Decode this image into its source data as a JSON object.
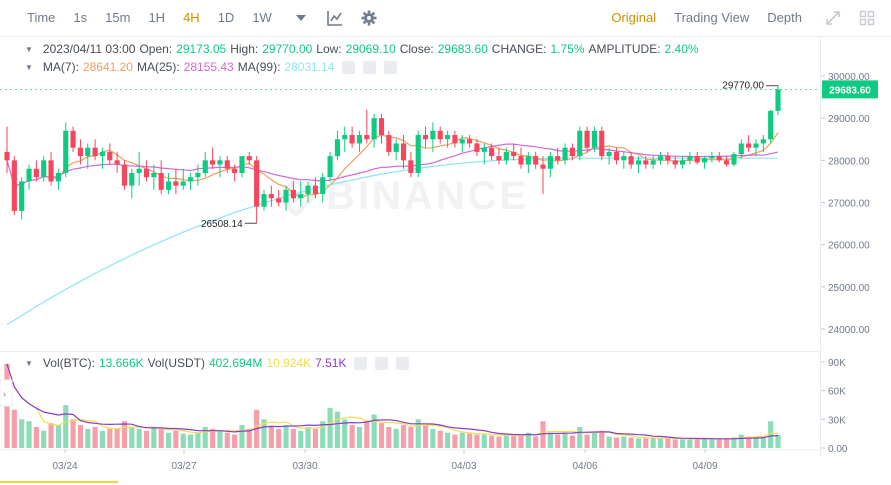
{
  "toolbar": {
    "intervals": [
      {
        "label": "Time",
        "active": false
      },
      {
        "label": "1s",
        "active": false
      },
      {
        "label": "15m",
        "active": false
      },
      {
        "label": "1H",
        "active": false
      },
      {
        "label": "4H",
        "active": true
      },
      {
        "label": "1D",
        "active": false
      },
      {
        "label": "1W",
        "active": false
      }
    ],
    "views": [
      {
        "label": "Original",
        "active": true
      },
      {
        "label": "Trading View",
        "active": false
      },
      {
        "label": "Depth",
        "active": false
      }
    ]
  },
  "ohlc": {
    "datetime": "2023/04/11 03:00",
    "open_label": "Open:",
    "open": "29173.05",
    "high_label": "High:",
    "high": "29770.00",
    "low_label": "Low:",
    "low": "29069.10",
    "close_label": "Close:",
    "close": "29683.60",
    "change_label": "CHANGE:",
    "change": "1.75%",
    "amplitude_label": "AMPLITUDE:",
    "amplitude": "2.40%"
  },
  "ma": {
    "ma7_label": "MA(7):",
    "ma7": "28641.20",
    "ma25_label": "MA(25):",
    "ma25": "28155.43",
    "ma99_label": "MA(99):",
    "ma99": "28031.14"
  },
  "volume": {
    "btc_label": "Vol(BTC):",
    "btc": "13.666K",
    "usdt_label": "Vol(USDT)",
    "usdt": "402.694M",
    "ma1": "10.924K",
    "ma2": "7.51K"
  },
  "price_axis": [
    "30000.00",
    "29000.00",
    "28000.00",
    "27000.00",
    "26000.00",
    "25000.00",
    "24000.00"
  ],
  "volume_axis": [
    "90K",
    "60K",
    "30K",
    "0.00"
  ],
  "date_axis": [
    "03/24",
    "03/27",
    "03/30",
    "04/03",
    "04/06",
    "04/09"
  ],
  "current_price": "29683.60",
  "high_marker": "29770.00",
  "low_marker": "26508.14",
  "watermark": "BINANCE",
  "colors": {
    "up": "#0ecb81",
    "down": "#f6465d",
    "accent": "#c99400",
    "ma7": "#f0a05a",
    "ma25": "#d16bd9",
    "ma99": "#8ee6ee"
  },
  "chart_data": {
    "type": "candlestick",
    "ylim": [
      23700,
      30400
    ],
    "candles": [
      [
        28200,
        28800,
        27700,
        28000
      ],
      [
        28000,
        28100,
        26700,
        26800
      ],
      [
        26800,
        27600,
        26600,
        27500
      ],
      [
        27500,
        27900,
        27300,
        27800
      ],
      [
        27800,
        28000,
        27500,
        27600
      ],
      [
        27600,
        28100,
        27500,
        28000
      ],
      [
        28000,
        28200,
        27400,
        27500
      ],
      [
        27500,
        27800,
        27300,
        27700
      ],
      [
        27700,
        28900,
        27600,
        28700
      ],
      [
        28700,
        28800,
        28200,
        28300
      ],
      [
        28300,
        28500,
        27900,
        28100
      ],
      [
        28100,
        28400,
        27800,
        28300
      ],
      [
        28300,
        28500,
        28000,
        28100
      ],
      [
        28100,
        28300,
        27800,
        28200
      ],
      [
        28200,
        28400,
        27900,
        28000
      ],
      [
        28000,
        28200,
        27700,
        27900
      ],
      [
        27900,
        28000,
        27300,
        27400
      ],
      [
        27400,
        27800,
        27100,
        27700
      ],
      [
        27700,
        28200,
        27400,
        27800
      ],
      [
        27800,
        28000,
        27500,
        27600
      ],
      [
        27600,
        27900,
        27300,
        27700
      ],
      [
        27700,
        28000,
        27200,
        27300
      ],
      [
        27300,
        27700,
        27200,
        27500
      ],
      [
        27500,
        27800,
        27200,
        27400
      ],
      [
        27400,
        27800,
        27300,
        27500
      ],
      [
        27500,
        27700,
        27300,
        27600
      ],
      [
        27600,
        27900,
        27400,
        27700
      ],
      [
        27700,
        28200,
        27600,
        28000
      ],
      [
        28000,
        28300,
        27800,
        27900
      ],
      [
        27900,
        28100,
        27600,
        28000
      ],
      [
        28000,
        28100,
        27700,
        27800
      ],
      [
        27800,
        27900,
        27500,
        27700
      ],
      [
        27700,
        28100,
        27600,
        28100
      ],
      [
        28100,
        28200,
        27900,
        28000
      ],
      [
        28000,
        28100,
        26508,
        26900
      ],
      [
        26900,
        27300,
        26800,
        27200
      ],
      [
        27200,
        27400,
        26900,
        27100
      ],
      [
        27100,
        27300,
        26900,
        27000
      ],
      [
        27000,
        27400,
        26800,
        27300
      ],
      [
        27300,
        27500,
        27000,
        27100
      ],
      [
        27100,
        27500,
        26900,
        27200
      ],
      [
        27200,
        27500,
        27000,
        27400
      ],
      [
        27400,
        27600,
        27100,
        27200
      ],
      [
        27200,
        27700,
        27000,
        27600
      ],
      [
        27600,
        28200,
        27500,
        28100
      ],
      [
        28100,
        28700,
        28000,
        28500
      ],
      [
        28500,
        28800,
        28200,
        28600
      ],
      [
        28600,
        28800,
        28300,
        28400
      ],
      [
        28400,
        28700,
        28200,
        28600
      ],
      [
        28600,
        29200,
        28400,
        28500
      ],
      [
        28500,
        29100,
        28300,
        29000
      ],
      [
        29000,
        29100,
        28400,
        28600
      ],
      [
        28600,
        28700,
        28100,
        28200
      ],
      [
        28200,
        28500,
        28000,
        28400
      ],
      [
        28400,
        28600,
        27800,
        28000
      ],
      [
        28000,
        28200,
        27600,
        27700
      ],
      [
        27700,
        28700,
        27600,
        28600
      ],
      [
        28600,
        28800,
        28300,
        28500
      ],
      [
        28500,
        28900,
        28200,
        28700
      ],
      [
        28700,
        28800,
        28400,
        28500
      ],
      [
        28500,
        28700,
        28300,
        28600
      ],
      [
        28600,
        28700,
        28300,
        28400
      ],
      [
        28400,
        28600,
        28200,
        28500
      ],
      [
        28500,
        28600,
        28300,
        28400
      ],
      [
        28400,
        28500,
        28100,
        28200
      ],
      [
        28200,
        28400,
        27900,
        28300
      ],
      [
        28300,
        28400,
        28000,
        28100
      ],
      [
        28100,
        28300,
        27900,
        28000
      ],
      [
        28000,
        28300,
        27900,
        28200
      ],
      [
        28200,
        28400,
        28000,
        28100
      ],
      [
        28100,
        28300,
        27800,
        27900
      ],
      [
        27900,
        28200,
        27700,
        28100
      ],
      [
        28100,
        28200,
        27800,
        27900
      ],
      [
        27900,
        28100,
        27200,
        27800
      ],
      [
        27800,
        28200,
        27600,
        28100
      ],
      [
        28100,
        28300,
        27900,
        28000
      ],
      [
        28000,
        28400,
        27900,
        28300
      ],
      [
        28300,
        28400,
        28000,
        28100
      ],
      [
        28100,
        28800,
        28000,
        28700
      ],
      [
        28700,
        28800,
        28200,
        28300
      ],
      [
        28300,
        28800,
        28200,
        28700
      ],
      [
        28700,
        28800,
        28000,
        28100
      ],
      [
        28100,
        28300,
        27900,
        28200
      ],
      [
        28200,
        28300,
        27900,
        28000
      ],
      [
        28000,
        28200,
        27800,
        28100
      ],
      [
        28100,
        28200,
        27800,
        27900
      ],
      [
        27900,
        28100,
        27700,
        28000
      ],
      [
        28000,
        28100,
        27800,
        27900
      ],
      [
        27900,
        28100,
        27800,
        28000
      ],
      [
        28000,
        28200,
        27900,
        28100
      ],
      [
        28100,
        28200,
        27900,
        28000
      ],
      [
        28000,
        28100,
        27800,
        27900
      ],
      [
        27900,
        28100,
        27800,
        28000
      ],
      [
        28000,
        28200,
        27900,
        28100
      ],
      [
        28100,
        28200,
        27900,
        27950
      ],
      [
        27950,
        28100,
        27800,
        28050
      ],
      [
        28050,
        28200,
        27950,
        28100
      ],
      [
        28100,
        28200,
        27950,
        28000
      ],
      [
        28000,
        28100,
        27850,
        27900
      ],
      [
        27900,
        28200,
        27850,
        28150
      ],
      [
        28150,
        28500,
        28050,
        28400
      ],
      [
        28400,
        28600,
        28200,
        28300
      ],
      [
        28300,
        28500,
        28100,
        28400
      ],
      [
        28400,
        28600,
        28200,
        28500
      ],
      [
        28500,
        29200,
        28400,
        29173
      ],
      [
        29173,
        29770,
        29069,
        29683.6
      ]
    ],
    "volumes": [
      88,
      40,
      30,
      28,
      22,
      18,
      26,
      24,
      45,
      30,
      24,
      20,
      22,
      18,
      20,
      20,
      28,
      22,
      20,
      18,
      22,
      20,
      16,
      18,
      15,
      14,
      16,
      22,
      20,
      18,
      16,
      14,
      24,
      20,
      40,
      30,
      22,
      20,
      24,
      20,
      18,
      22,
      20,
      28,
      42,
      38,
      30,
      24,
      22,
      28,
      35,
      26,
      22,
      20,
      24,
      22,
      30,
      24,
      20,
      18,
      16,
      14,
      16,
      15,
      14,
      14,
      13,
      12,
      14,
      13,
      14,
      16,
      12,
      28,
      16,
      14,
      16,
      13,
      22,
      14,
      16,
      18,
      12,
      11,
      12,
      11,
      10,
      10,
      10,
      11,
      10,
      9,
      9,
      9,
      10,
      10,
      9,
      9,
      10,
      11,
      14,
      12,
      11,
      12,
      28,
      14
    ]
  }
}
